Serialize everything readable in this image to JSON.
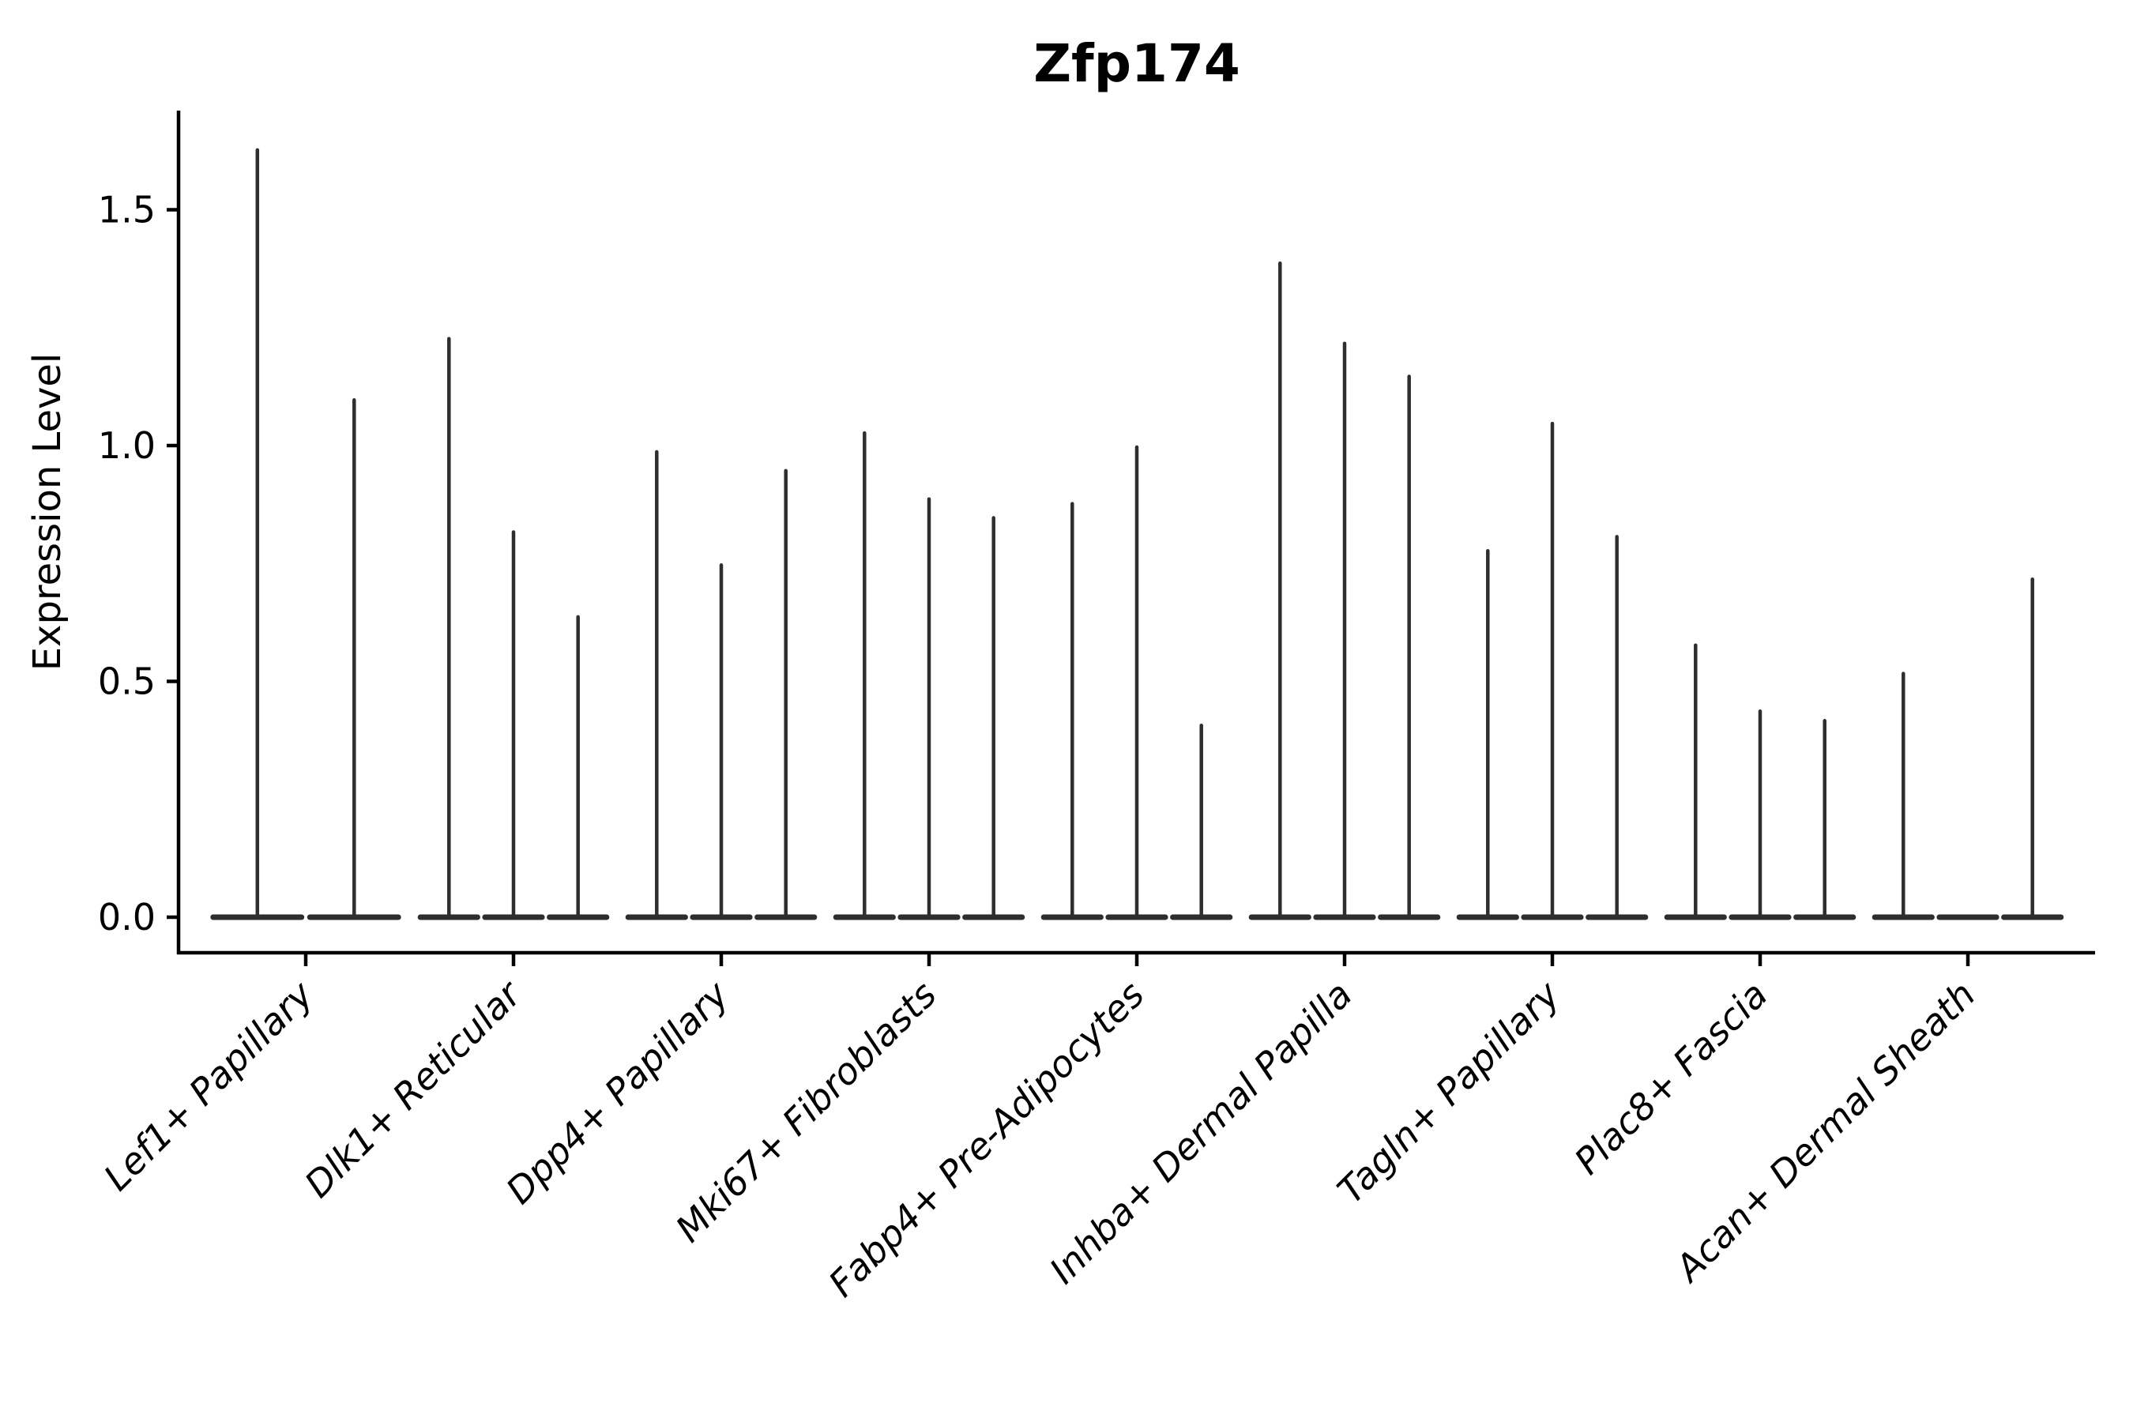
{
  "chart_data": {
    "type": "violin",
    "title": "Zfp174",
    "ylabel": "Expression Level",
    "xlabel": "",
    "categories": [
      "Lef1+ Papillary",
      "Dlk1+ Reticular",
      "Dpp4+ Papillary",
      "Mki67+ Fibroblasts",
      "Fabp4+ Pre-Adipocytes",
      "Inhba+ Dermal Papilla",
      "Tagln+ Papillary",
      "Plac8+ Fascia",
      "Acan+ Dermal Sheath"
    ],
    "violins_per_category": [
      [
        1.63,
        1.1
      ],
      [
        1.23,
        0.82,
        0.64
      ],
      [
        0.99,
        0.75,
        0.95
      ],
      [
        1.03,
        0.89,
        0.85
      ],
      [
        0.88,
        1.0,
        0.41
      ],
      [
        1.39,
        1.22,
        1.15
      ],
      [
        0.78,
        1.05,
        0.81
      ],
      [
        0.58,
        0.44,
        0.42
      ],
      [
        0.52,
        0.0,
        0.72
      ]
    ],
    "ytick_labels": [
      "0.0",
      "0.5",
      "1.0",
      "1.5"
    ],
    "ytick_values": [
      0.0,
      0.5,
      1.0,
      1.5
    ],
    "ylim": [
      -0.08,
      1.71
    ],
    "grid": false,
    "legend_position": "none",
    "styles": {
      "violin_color": "#2e2e2e",
      "axis_color": "#000000",
      "text_color": "#000000",
      "background": "#ffffff",
      "xtick_label_style": "italic",
      "title_weight": "bold"
    }
  }
}
